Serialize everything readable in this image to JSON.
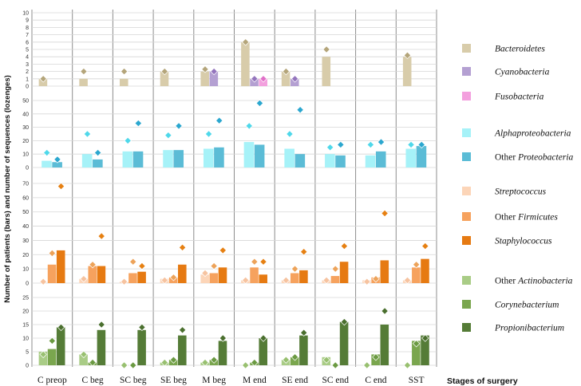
{
  "chart_data": {
    "type": "bar",
    "ylabel": "Number of patients (bars) and number of sequences (lozenges)",
    "xlabel": "Stages of surgery",
    "categories": [
      "C preop",
      "C beg",
      "SC beg",
      "SE beg",
      "M beg",
      "M end",
      "SE end",
      "SC end",
      "C end",
      "SST"
    ],
    "panels": [
      {
        "ylim": [
          0,
          10
        ],
        "ticks": [
          "0",
          "1",
          "2",
          "3",
          "4",
          "5",
          "6",
          "7",
          "8",
          "9",
          "10"
        ],
        "series": [
          {
            "name": "Bacteroidetes",
            "italic": true,
            "color": "#d8ccaa",
            "marker": "#b4a57a",
            "bars": [
              1,
              1,
              1,
              2,
              2,
              6,
              2,
              4,
              0,
              4
            ],
            "seqs": [
              1,
              2,
              2,
              2,
              2.3,
              6,
              2,
              5,
              null,
              4.2
            ]
          },
          {
            "name": "Cyanobacteria",
            "italic": true,
            "color": "#b4a0d2",
            "marker": "#9475bd",
            "bars": [
              0,
              0,
              0,
              0,
              2,
              1,
              1,
              0,
              0,
              0
            ],
            "seqs": [
              null,
              null,
              null,
              null,
              2,
              1,
              1,
              null,
              null,
              null
            ]
          },
          {
            "name": "Fusobacteria",
            "italic": true,
            "color": "#f3a0de",
            "marker": "#e070c8",
            "bars": [
              0,
              0,
              0,
              0,
              0,
              1,
              0,
              0,
              0,
              0
            ],
            "seqs": [
              null,
              null,
              null,
              null,
              null,
              1,
              null,
              null,
              null,
              null
            ]
          }
        ]
      },
      {
        "ylim": [
          0,
          50
        ],
        "ticks": [
          "0",
          "10",
          "20",
          "30",
          "40",
          "50"
        ],
        "series": [
          {
            "name": "Alphaproteobacteria",
            "italic": true,
            "color": "#a6f2f8",
            "marker": "#4fd8ea",
            "bars": [
              5,
              10,
              12,
              13,
              14,
              19,
              14,
              10,
              9,
              14
            ],
            "seqs": [
              11,
              25,
              20,
              24,
              25,
              31,
              25,
              15,
              17,
              17
            ]
          },
          {
            "name": "Other Proteobacteria",
            "prefix": "Other ",
            "italicPart": "Proteobacteria",
            "color": "#5bbcd6",
            "marker": "#2ba7cf",
            "bars": [
              4,
              6,
              12,
              13,
              15,
              17,
              10,
              9,
              12,
              16
            ],
            "seqs": [
              6,
              11,
              33,
              31,
              35,
              48,
              43,
              17,
              19,
              17
            ]
          }
        ]
      },
      {
        "ylim": [
          0,
          70
        ],
        "ticks": [
          "0",
          "10",
          "20",
          "30",
          "40",
          "50",
          "60",
          "70"
        ],
        "series": [
          {
            "name": "Streptococcus",
            "italic": true,
            "color": "#fcd5b8",
            "marker": "#f6c3a0",
            "bars": [
              0,
              3,
              1,
              3,
              6,
              2,
              2,
              2,
              2,
              2
            ],
            "seqs": [
              1,
              3,
              1,
              2,
              7,
              2,
              2,
              2,
              1,
              2
            ]
          },
          {
            "name": "Other Firmicutes",
            "prefix": "Other ",
            "italicPart": "Firmicutes",
            "color": "#f6a25e",
            "marker": "#eda35a",
            "bars": [
              13,
              12,
              7,
              4,
              7,
              11,
              7,
              5,
              4,
              11
            ],
            "seqs": [
              21,
              13,
              15,
              4,
              12,
              15,
              10,
              10,
              3,
              13
            ]
          },
          {
            "name": "Staphylococcus",
            "italic": true,
            "color": "#e67a12",
            "marker": "#e68012",
            "bars": [
              23,
              12,
              8,
              13,
              11,
              6,
              9,
              15,
              16,
              17
            ],
            "seqs": [
              68,
              33,
              12,
              25,
              23,
              15,
              22,
              26,
              49,
              26
            ]
          }
        ]
      },
      {
        "ylim": [
          0,
          25
        ],
        "ticks": [
          "0",
          "5",
          "10",
          "15",
          "20",
          "25"
        ],
        "series": [
          {
            "name": "Other Actinobacteria",
            "prefix": "Other ",
            "italicPart": "Actinobacteria",
            "color": "#a9cc86",
            "marker": "#98c070",
            "bars": [
              5,
              4,
              0,
              1,
              1,
              0,
              2,
              3,
              0,
              0
            ],
            "seqs": [
              4,
              4,
              0,
              1,
              1,
              0,
              2,
              2,
              0,
              0
            ]
          },
          {
            "name": "Corynebacterium",
            "italic": true,
            "color": "#7aa64e",
            "marker": "#6b9a42",
            "bars": [
              6,
              1,
              0,
              2,
              2,
              1,
              3,
              0,
              4,
              9
            ],
            "seqs": [
              9,
              1,
              0,
              2,
              2,
              1,
              3,
              0,
              3,
              8
            ]
          },
          {
            "name": "Propionibacterium",
            "italic": true,
            "color": "#557c37",
            "marker": "#4a6f2e",
            "bars": [
              14,
              13,
              13,
              11,
              9,
              10,
              11,
              16,
              15,
              11
            ],
            "seqs": [
              14,
              15,
              14,
              13,
              10,
              10,
              12,
              16,
              20,
              10
            ]
          }
        ]
      }
    ]
  }
}
